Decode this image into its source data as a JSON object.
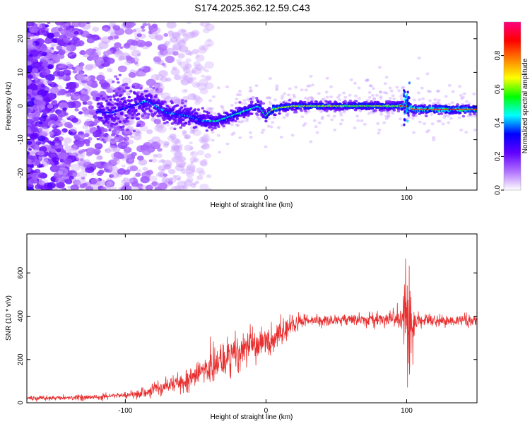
{
  "title": "S174.2025.362.12.59.C43",
  "chart_data": [
    {
      "type": "heatmap",
      "name": "spectrogram",
      "xlabel": "Height of straight line (km)",
      "ylabel": "Frequency (Hz)",
      "xlim": [
        -170,
        150
      ],
      "ylim": [
        -25,
        25
      ],
      "xticks": [
        -100,
        0,
        100
      ],
      "xtick_labels": [
        "-100",
        "0",
        "100"
      ],
      "yticks": [
        -20,
        -10,
        0,
        10,
        20
      ],
      "ytick_labels": [
        "-20",
        "-10",
        "0",
        "10",
        "20"
      ],
      "ridge": {
        "x": [
          -170,
          -140,
          -110,
          -95,
          -85,
          -70,
          -55,
          -45,
          -35,
          -25,
          -15,
          -5,
          0,
          5,
          10,
          20,
          40,
          60,
          80,
          95,
          100,
          105,
          120,
          140,
          150
        ],
        "freq": [
          -2,
          -1,
          -2,
          0,
          1.5,
          -2,
          -3,
          -4.5,
          -4.5,
          -3,
          -1.5,
          0,
          -3,
          -1,
          -0.5,
          0,
          0,
          0,
          0,
          0,
          0,
          -1,
          -1,
          -1,
          -1
        ]
      },
      "colorbar": {
        "label": "Normalized spectral amplitude",
        "range": [
          0,
          1
        ],
        "ticks": [
          0.0,
          0.2,
          0.4,
          0.6,
          0.8
        ],
        "tick_labels": [
          "0.0",
          "0.2",
          "0.4",
          "0.6",
          "0.8"
        ],
        "colors": [
          "#ffffff",
          "#b070ff",
          "#6000ff",
          "#0000ff",
          "#00ffff",
          "#00ff00",
          "#ffff00",
          "#ff8000",
          "#ff0000",
          "#ff0080"
        ]
      }
    },
    {
      "type": "line",
      "name": "snr",
      "xlabel": "Height of straight line (km)",
      "ylabel": "SNR (10 * v/v)",
      "xlim": [
        -170,
        150
      ],
      "ylim": [
        0,
        780
      ],
      "xticks": [
        -100,
        0,
        100
      ],
      "xtick_labels": [
        "-100",
        "0",
        "100"
      ],
      "yticks": [
        0,
        200,
        400,
        600
      ],
      "ytick_labels": [
        "0",
        "200",
        "400",
        "600"
      ],
      "line_color": "#e83030",
      "envelope": {
        "x": [
          -170,
          -130,
          -100,
          -90,
          -80,
          -60,
          -40,
          -20,
          -10,
          0,
          10,
          20,
          30,
          40,
          60,
          80,
          90,
          95,
          98,
          100,
          102,
          104,
          106,
          110,
          130,
          150
        ],
        "mean": [
          20,
          25,
          35,
          40,
          60,
          100,
          160,
          230,
          260,
          280,
          320,
          360,
          385,
          380,
          385,
          385,
          390,
          385,
          380,
          300,
          420,
          300,
          390,
          380,
          380,
          380
        ],
        "noise": [
          8,
          10,
          12,
          18,
          25,
          45,
          70,
          80,
          70,
          60,
          50,
          40,
          25,
          20,
          20,
          25,
          30,
          60,
          120,
          300,
          250,
          120,
          40,
          25,
          20,
          25
        ]
      }
    }
  ]
}
